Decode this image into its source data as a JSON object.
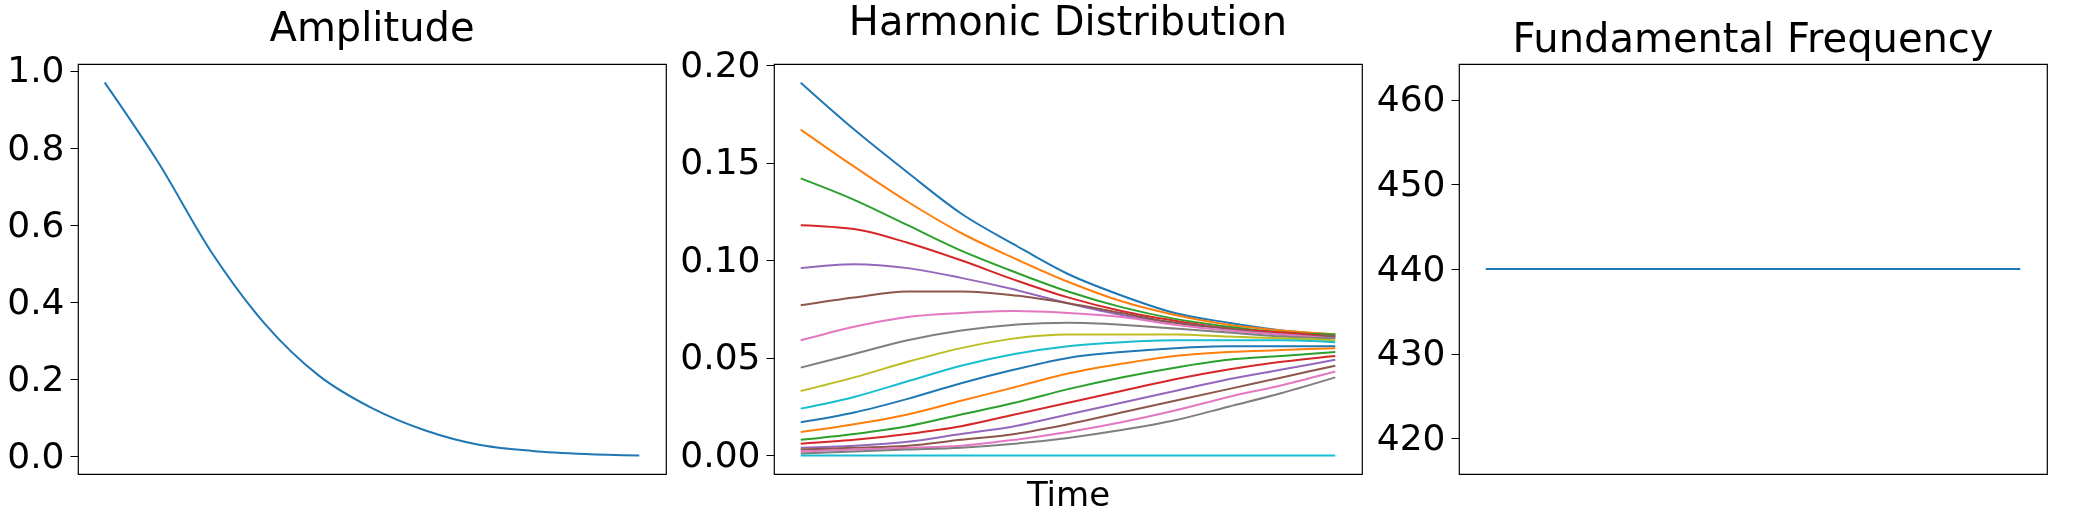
{
  "chart_data": [
    {
      "type": "line",
      "title": "Amplitude",
      "categories": [
        null,
        null,
        null,
        null,
        null,
        null,
        null,
        null,
        null,
        null,
        null
      ],
      "series": [
        {
          "color": "#1f77b4",
          "values": [
            0.97,
            0.763,
            0.529,
            0.343,
            0.21,
            0.125,
            0.067,
            0.03,
            0.014,
            0.006,
            0.002
          ]
        }
      ],
      "ylim": [
        -0.046,
        1.018
      ],
      "yticks": [
        {
          "value": 0,
          "label": "0.0"
        },
        0.2,
        0.4,
        0.6,
        0.8,
        {
          "value": 1,
          "label": "1.0"
        }
      ]
    },
    {
      "type": "line",
      "title": "Harmonic Distribution",
      "xlabel": "Time",
      "categories": [
        null,
        null,
        null,
        null,
        null,
        null,
        null,
        null,
        null,
        null,
        null
      ],
      "series": [
        {
          "color": "#1f77b4",
          "values": [
            0.191,
            0.167,
            0.145,
            0.124,
            0.108,
            0.093,
            0.082,
            0.073,
            0.068,
            0.064,
            0.062
          ]
        },
        {
          "color": "#ff7f0e",
          "values": [
            0.167,
            0.148,
            0.13,
            0.114,
            0.101,
            0.089,
            0.079,
            0.072,
            0.067,
            0.064,
            0.062
          ]
        },
        {
          "color": "#2ca02c",
          "values": [
            0.142,
            0.131,
            0.118,
            0.105,
            0.094,
            0.084,
            0.076,
            0.07,
            0.066,
            0.063,
            0.062
          ]
        },
        {
          "color": "#d62728",
          "values": [
            0.118,
            0.116,
            0.109,
            0.1,
            0.09,
            0.081,
            0.074,
            0.069,
            0.065,
            0.063,
            0.061
          ]
        },
        {
          "color": "#9467bd",
          "values": [
            0.096,
            0.098,
            0.096,
            0.091,
            0.085,
            0.078,
            0.072,
            0.068,
            0.065,
            0.062,
            0.061
          ]
        },
        {
          "color": "#8c564b",
          "values": [
            0.077,
            0.081,
            0.084,
            0.084,
            0.082,
            0.078,
            0.073,
            0.068,
            0.065,
            0.062,
            0.061
          ]
        },
        {
          "color": "#e377c2",
          "values": [
            0.059,
            0.066,
            0.071,
            0.073,
            0.074,
            0.073,
            0.071,
            0.067,
            0.064,
            0.062,
            0.06
          ]
        },
        {
          "color": "#7f7f7f",
          "values": [
            0.045,
            0.052,
            0.059,
            0.064,
            0.067,
            0.068,
            0.067,
            0.065,
            0.063,
            0.061,
            0.06
          ]
        },
        {
          "color": "#bcbd22",
          "values": [
            0.033,
            0.04,
            0.048,
            0.055,
            0.06,
            0.062,
            0.062,
            0.062,
            0.061,
            0.06,
            0.059
          ]
        },
        {
          "color": "#17becf",
          "values": [
            0.024,
            0.03,
            0.038,
            0.046,
            0.052,
            0.056,
            0.058,
            0.059,
            0.059,
            0.059,
            0.058
          ]
        },
        {
          "color": "#1f77b4",
          "values": [
            0.017,
            0.022,
            0.029,
            0.037,
            0.044,
            0.05,
            0.053,
            0.055,
            0.056,
            0.056,
            0.056
          ]
        },
        {
          "color": "#ff7f0e",
          "values": [
            0.012,
            0.016,
            0.021,
            0.028,
            0.035,
            0.042,
            0.047,
            0.051,
            0.053,
            0.054,
            0.055
          ]
        },
        {
          "color": "#2ca02c",
          "values": [
            0.008,
            0.011,
            0.015,
            0.021,
            0.027,
            0.034,
            0.04,
            0.045,
            0.049,
            0.051,
            0.053
          ]
        },
        {
          "color": "#d62728",
          "values": [
            0.006,
            0.008,
            0.011,
            0.015,
            0.021,
            0.027,
            0.033,
            0.039,
            0.044,
            0.048,
            0.051
          ]
        },
        {
          "color": "#9467bd",
          "values": [
            0.004,
            0.005,
            0.007,
            0.011,
            0.015,
            0.021,
            0.027,
            0.033,
            0.039,
            0.044,
            0.049
          ]
        },
        {
          "color": "#8c564b",
          "values": [
            0.003,
            0.004,
            0.005,
            0.008,
            0.011,
            0.016,
            0.022,
            0.028,
            0.034,
            0.04,
            0.046
          ]
        },
        {
          "color": "#e377c2",
          "values": [
            0.002,
            0.003,
            0.004,
            0.005,
            0.008,
            0.012,
            0.017,
            0.023,
            0.03,
            0.036,
            0.043
          ]
        },
        {
          "color": "#7f7f7f",
          "values": [
            0.001,
            0.002,
            0.003,
            0.004,
            0.006,
            0.009,
            0.013,
            0.018,
            0.025,
            0.032,
            0.04
          ]
        },
        {
          "color": "#17becf",
          "values": [
            0,
            0,
            0,
            0,
            0,
            0,
            0,
            0,
            0,
            0,
            0
          ]
        }
      ],
      "ylim": [
        -0.0095,
        0.2006
      ],
      "yticks": [
        {
          "value": 0,
          "label": "0.00"
        },
        0.05,
        {
          "value": 0.1,
          "label": "0.10"
        },
        0.15,
        {
          "value": 0.2,
          "label": "0.20"
        }
      ]
    },
    {
      "type": "line",
      "title": "Fundamental Frequency",
      "categories": [
        null,
        null,
        null,
        null,
        null,
        null,
        null,
        null,
        null,
        null,
        null
      ],
      "series": [
        {
          "color": "#1f77b4",
          "values": [
            440,
            440,
            440,
            440,
            440,
            440,
            440,
            440,
            440,
            440,
            440
          ]
        }
      ],
      "ylim": [
        415.8,
        464.2
      ],
      "yticks": [
        420,
        430,
        440,
        450,
        460
      ]
    }
  ]
}
